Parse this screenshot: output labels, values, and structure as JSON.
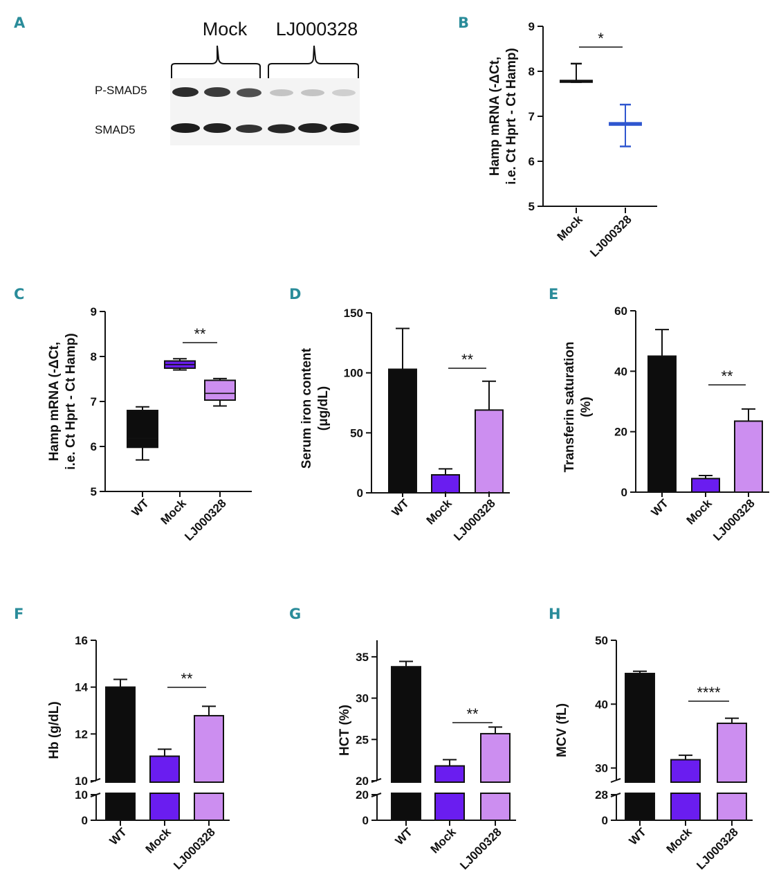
{
  "colors": {
    "wt": "#0d0d0d",
    "mock": "#6a1df0",
    "lj": "#cc8ef0",
    "panel_label": "#2a8c9a",
    "b_lj": "#2f56cf"
  },
  "panel_a": {
    "label": "A",
    "groups": [
      "Mock",
      "LJ000328"
    ],
    "rows": [
      "P-SMAD5",
      "SMAD5"
    ]
  },
  "chart_data": [
    {
      "id": "B",
      "type": "box",
      "label": "B",
      "ylabel_lines": [
        "Hamp mRNA (-ΔCt,",
        "i.e. Ct Hprt - Ct Hamp)"
      ],
      "ylim": [
        5,
        9
      ],
      "yticks": [
        5,
        6,
        7,
        8,
        9
      ],
      "categories": [
        "Mock",
        "LJ000328"
      ],
      "boxes": [
        {
          "min": 7.76,
          "q1": 7.76,
          "median": 7.78,
          "q3": 7.8,
          "max": 8.17
        },
        {
          "min": 6.33,
          "q1": 6.8,
          "median": 6.83,
          "q3": 6.86,
          "max": 7.26
        }
      ],
      "significance": [
        {
          "from": 0,
          "to": 1,
          "text": "*"
        }
      ]
    },
    {
      "id": "C",
      "type": "box",
      "label": "C",
      "ylabel_lines": [
        "Hamp mRNA (-ΔCt,",
        "i.e. Ct Hprt - Ct Hamp)"
      ],
      "ylim": [
        5,
        9
      ],
      "yticks": [
        5,
        6,
        7,
        8,
        9
      ],
      "categories": [
        "WT",
        "Mock",
        "LJ000328"
      ],
      "boxes": [
        {
          "min": 5.7,
          "q1": 5.98,
          "median": 6.18,
          "q3": 6.8,
          "max": 6.88
        },
        {
          "min": 7.7,
          "q1": 7.74,
          "median": 7.82,
          "q3": 7.9,
          "max": 7.95
        },
        {
          "min": 6.9,
          "q1": 7.03,
          "median": 7.18,
          "q3": 7.47,
          "max": 7.51
        }
      ],
      "significance": [
        {
          "from": 1,
          "to": 2,
          "text": "**"
        }
      ]
    },
    {
      "id": "D",
      "type": "bar",
      "label": "D",
      "ylabel_lines": [
        "Serum iron content",
        "(μg/dL)"
      ],
      "ylim": [
        0,
        150
      ],
      "yticks": [
        0,
        50,
        100,
        150
      ],
      "categories": [
        "WT",
        "Mock",
        "LJ000328"
      ],
      "values": [
        103,
        15,
        69
      ],
      "errors": [
        34,
        5,
        24
      ],
      "significance": [
        {
          "from": 1,
          "to": 2,
          "text": "**"
        }
      ]
    },
    {
      "id": "E",
      "type": "bar",
      "label": "E",
      "ylabel_lines": [
        "Transferin saturation",
        "(%)"
      ],
      "ylim": [
        0,
        60
      ],
      "yticks": [
        0,
        20,
        40,
        60
      ],
      "categories": [
        "WT",
        "Mock",
        "LJ000328"
      ],
      "values": [
        45,
        4.5,
        23.5
      ],
      "errors": [
        8.8,
        1.0,
        4.0
      ],
      "significance": [
        {
          "from": 1,
          "to": 2,
          "text": "**"
        }
      ]
    },
    {
      "id": "F",
      "type": "bar",
      "label": "F",
      "broken_axis": true,
      "ylabel_lines": [
        "Hb (g/dL)"
      ],
      "upper_ylim": [
        10,
        16
      ],
      "upper_yticks": [
        10,
        12,
        14,
        16
      ],
      "lower_ylim": [
        0,
        10
      ],
      "lower_yticks": [
        0,
        10
      ],
      "categories": [
        "WT",
        "Mock",
        "LJ000328"
      ],
      "values": [
        14.0,
        11.05,
        12.78
      ],
      "errors": [
        0.33,
        0.3,
        0.4
      ],
      "significance": [
        {
          "from": 1,
          "to": 2,
          "text": "**"
        }
      ]
    },
    {
      "id": "G",
      "type": "bar",
      "label": "G",
      "broken_axis": true,
      "ylabel_lines": [
        "HCT (%)"
      ],
      "upper_ylim": [
        20,
        37
      ],
      "upper_yticks": [
        20,
        25,
        30,
        35
      ],
      "lower_ylim": [
        0,
        20
      ],
      "lower_yticks": [
        0,
        20
      ],
      "categories": [
        "WT",
        "Mock",
        "LJ000328"
      ],
      "values": [
        33.8,
        21.8,
        25.7
      ],
      "errors": [
        0.65,
        0.75,
        0.8
      ],
      "significance": [
        {
          "from": 1,
          "to": 2,
          "text": "**"
        }
      ]
    },
    {
      "id": "H",
      "type": "bar",
      "label": "H",
      "broken_axis": true,
      "ylabel_lines": [
        "MCV (fL)"
      ],
      "upper_ylim": [
        28,
        50
      ],
      "upper_yticks": [
        30,
        40,
        50
      ],
      "lower_ylim": [
        0,
        28
      ],
      "lower_yticks": [
        0,
        28
      ],
      "categories": [
        "WT",
        "Mock",
        "LJ000328"
      ],
      "values": [
        44.8,
        31.3,
        37.0
      ],
      "errors": [
        0.35,
        0.7,
        0.8
      ],
      "significance": [
        {
          "from": 1,
          "to": 2,
          "text": "****"
        }
      ]
    }
  ]
}
